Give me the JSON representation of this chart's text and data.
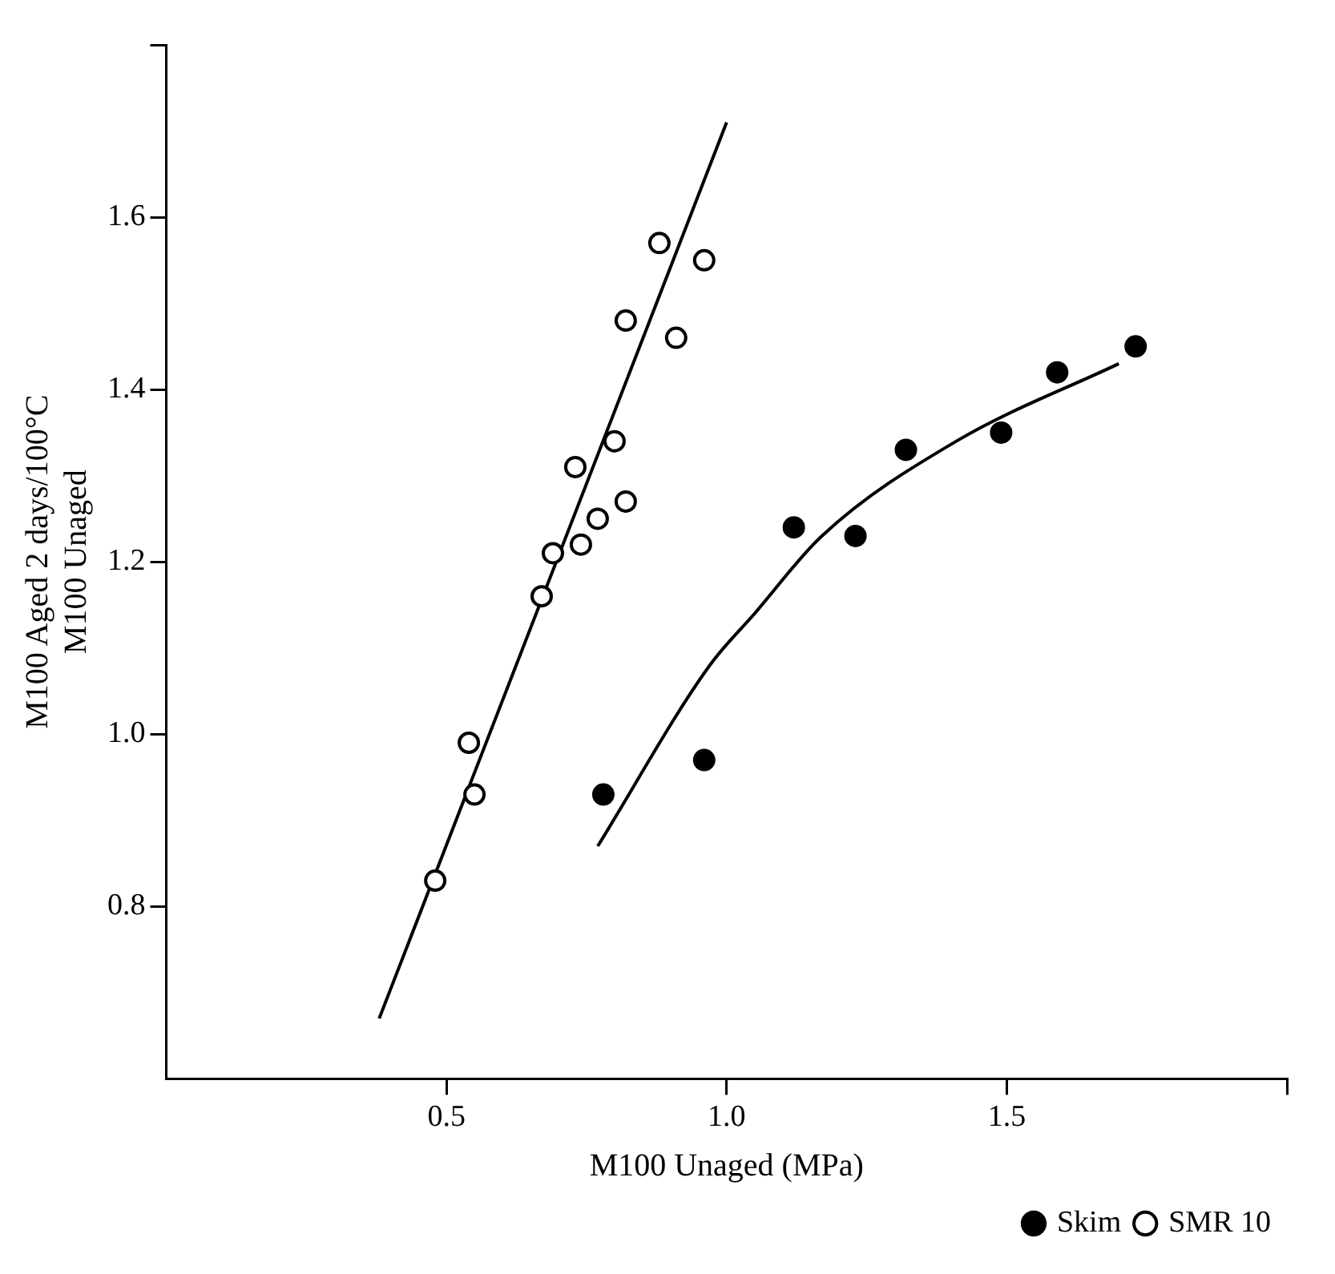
{
  "chart_data": {
    "type": "scatter",
    "xlabel": "M100 Unaged (MPa)",
    "ylabel": "M100 Aged 2 days/100°C\nM100 Unaged",
    "xlim": [
      0,
      2
    ],
    "xticks": [
      0.5,
      {
        "value": 1,
        "label": "1.0"
      },
      1.5,
      {
        "value": 2,
        "label": null
      }
    ],
    "ylim": [
      0.6,
      1.8
    ],
    "yticks": [
      0.8,
      {
        "value": 1,
        "label": "1.0"
      },
      1.2,
      1.4,
      1.6,
      {
        "value": 1.8,
        "label": null
      }
    ],
    "legend": "bottom right",
    "marker": "circle",
    "series": [
      {
        "name": "Skim",
        "color": "#000000",
        "x": [
          0.78,
          0.96,
          1.12,
          1.23,
          1.32,
          1.49,
          1.59,
          1.73
        ],
        "values": [
          0.93,
          0.97,
          1.24,
          1.23,
          1.33,
          1.35,
          1.42,
          1.45
        ]
      },
      {
        "name": "SMR 10",
        "color": "#000000",
        "x": [
          0.48,
          0.55,
          0.54,
          0.67,
          0.69,
          0.74,
          0.77,
          0.82,
          0.73,
          0.8,
          0.91,
          0.82,
          0.96,
          0.88
        ],
        "values": [
          0.83,
          0.93,
          0.99,
          1.16,
          1.21,
          1.22,
          1.25,
          1.27,
          1.31,
          1.34,
          1.46,
          1.48,
          1.55,
          1.57
        ]
      },
      {
        "type": "line",
        "marker": "none",
        "color": "#000000",
        "x": [
          0.77,
          0.97,
          1.05,
          1.17,
          1.41,
          1.7
        ],
        "values": [
          0.87,
          1.08,
          1.14,
          1.23,
          1.34,
          1.43
        ]
      },
      {
        "type": "line",
        "marker": "none",
        "color": "#000000",
        "x": [
          0.38,
          1.0
        ],
        "values": [
          0.67,
          1.71
        ]
      }
    ]
  }
}
